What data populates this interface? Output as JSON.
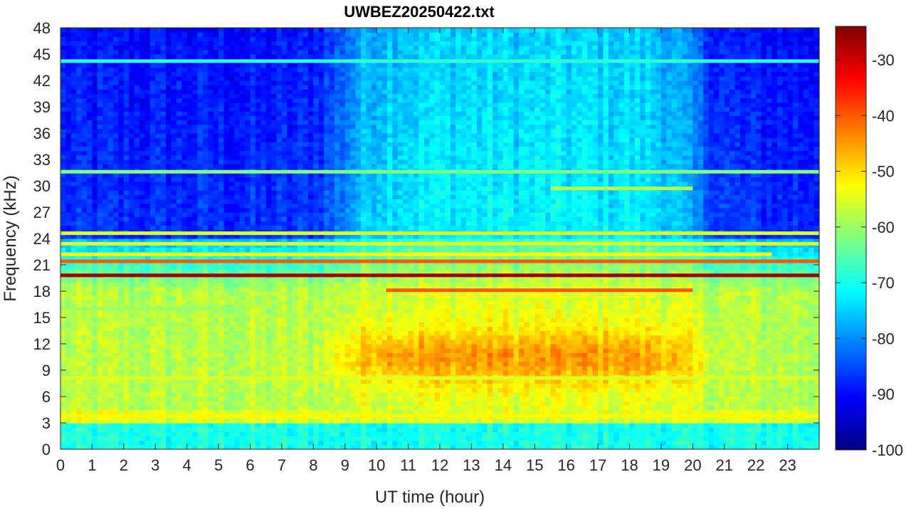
{
  "chart_data": {
    "type": "heatmap",
    "title": "UWBEZ20250422.txt",
    "xlabel": "UT time (hour)",
    "ylabel": "Frequency (kHz)",
    "xlim": [
      0,
      24
    ],
    "ylim": [
      0,
      48
    ],
    "x_ticks": [
      0,
      1,
      2,
      3,
      4,
      5,
      6,
      7,
      8,
      9,
      10,
      11,
      12,
      13,
      14,
      15,
      16,
      17,
      18,
      19,
      20,
      21,
      22,
      23
    ],
    "y_ticks": [
      0,
      3,
      6,
      9,
      12,
      15,
      18,
      21,
      24,
      27,
      30,
      33,
      36,
      39,
      42,
      45,
      48
    ],
    "colorbar": {
      "colormap": "jet",
      "clim": [
        -100,
        -24
      ],
      "ticks": [
        -30,
        -40,
        -50,
        -60,
        -70,
        -80,
        -90,
        -100
      ]
    },
    "background_levels_dB": {
      "below_3kHz": -70,
      "3_to_4kHz_line": -55,
      "5_to_18kHz_night_hours_0_to_9_and_20_to_24": -58,
      "5_to_18kHz_day_hours_9_to_20": -55,
      "day_hump_peak_8_to_13kHz": -45,
      "24_to_48kHz_night": -90,
      "24_to_48kHz_day": -75
    },
    "persistent_lines": [
      {
        "freq_khz": 19.8,
        "level_db": -27,
        "start_hour": 0,
        "end_hour": 24
      },
      {
        "freq_khz": 18.1,
        "level_db": -40,
        "start_hour": 10.3,
        "end_hour": 20
      },
      {
        "freq_khz": 21.4,
        "level_db": -40,
        "start_hour": 0,
        "end_hour": 24
      },
      {
        "freq_khz": 22.2,
        "level_db": -52,
        "start_hour": 0,
        "end_hour": 22.5
      },
      {
        "freq_khz": 23.4,
        "level_db": -55,
        "start_hour": 0,
        "end_hour": 24
      },
      {
        "freq_khz": 24.6,
        "level_db": -55,
        "start_hour": 0,
        "end_hour": 24
      },
      {
        "freq_khz": 29.7,
        "level_db": -58,
        "start_hour": 15.5,
        "end_hour": 20
      },
      {
        "freq_khz": 31.6,
        "level_db": -62,
        "start_hour": 0,
        "end_hour": 24
      },
      {
        "freq_khz": 44.2,
        "level_db": -68,
        "start_hour": 0,
        "end_hour": 24
      },
      {
        "freq_khz": 3.8,
        "level_db": -52,
        "start_hour": 0,
        "end_hour": 24
      },
      {
        "freq_khz": 8.1,
        "level_db": -55,
        "start_hour": 0,
        "end_hour": 24
      },
      {
        "freq_khz": 16.0,
        "level_db": -60,
        "start_hour": 0,
        "end_hour": 6
      }
    ]
  }
}
